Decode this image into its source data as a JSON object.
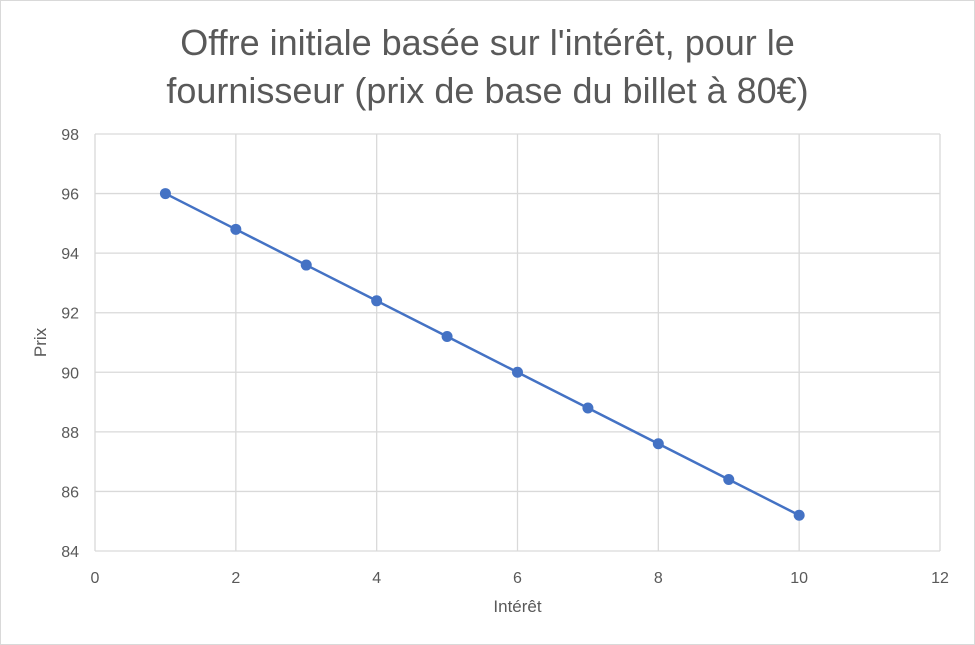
{
  "chart_data": {
    "type": "scatter",
    "title_lines": [
      "Offre initiale basée sur l'intérêt, pour le",
      "fournisseur (prix de base du billet à 80€)"
    ],
    "xlabel": "Intérêt",
    "ylabel": "Prix",
    "xlim": [
      0,
      12
    ],
    "ylim": [
      84,
      98
    ],
    "x_ticks": [
      0,
      2,
      4,
      6,
      8,
      10,
      12
    ],
    "y_ticks": [
      84,
      86,
      88,
      90,
      92,
      94,
      96,
      98
    ],
    "grid": true,
    "legend": "none",
    "series": [
      {
        "x": [
          1,
          2,
          3,
          4,
          5,
          6,
          7,
          8,
          9,
          10
        ],
        "y": [
          96,
          94.8,
          93.6,
          92.4,
          91.2,
          90,
          88.8,
          87.6,
          86.4,
          85.2
        ],
        "color": "#4472c4",
        "line": true,
        "markers": true
      }
    ],
    "colors": {
      "grid": "#d9d9d9",
      "text": "#595959"
    }
  }
}
